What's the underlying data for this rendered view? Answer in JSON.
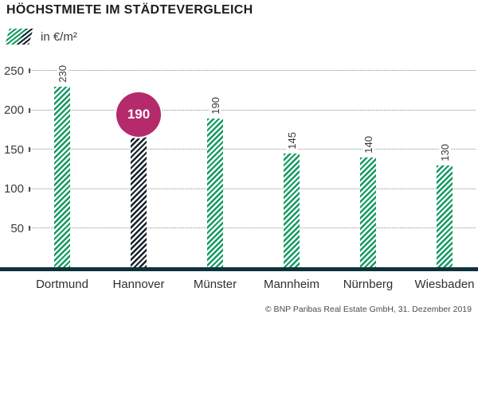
{
  "header": {
    "title": "HÖCHSTMIETE IM STÄDTEVERGLEICH"
  },
  "legend": {
    "label": "in €/m²"
  },
  "footer": {
    "source": "© BNP Paribas Real Estate GmbH, 31. Dezember 2019"
  },
  "colors": {
    "bar_green": "#149a61",
    "bar_navy": "#16222d",
    "axis_line": "#0e323c",
    "highlight_badge": "#b52a6b",
    "grid_dots": "#8f8f8f",
    "text": "#3a3a39"
  },
  "chart_data": {
    "type": "bar",
    "title": "HÖCHSTMIETE IM STÄDTEVERGLEICH",
    "legend": "in €/m²",
    "unit": "€/m²",
    "categories": [
      "Dortmund",
      "Hannover",
      "Münster",
      "Mannheim",
      "Nürnberg",
      "Wiesbaden"
    ],
    "values": [
      230,
      190,
      190,
      145,
      140,
      130
    ],
    "highlighted_category": "Hannover",
    "highlighted_value": 190,
    "yticks": [
      50,
      100,
      150,
      200,
      250
    ],
    "ylim": [
      0,
      250
    ],
    "grid": "dotted-horizontal",
    "legend_position": "top-left",
    "source": "© BNP Paribas Real Estate GmbH, 31. Dezember 2019"
  }
}
